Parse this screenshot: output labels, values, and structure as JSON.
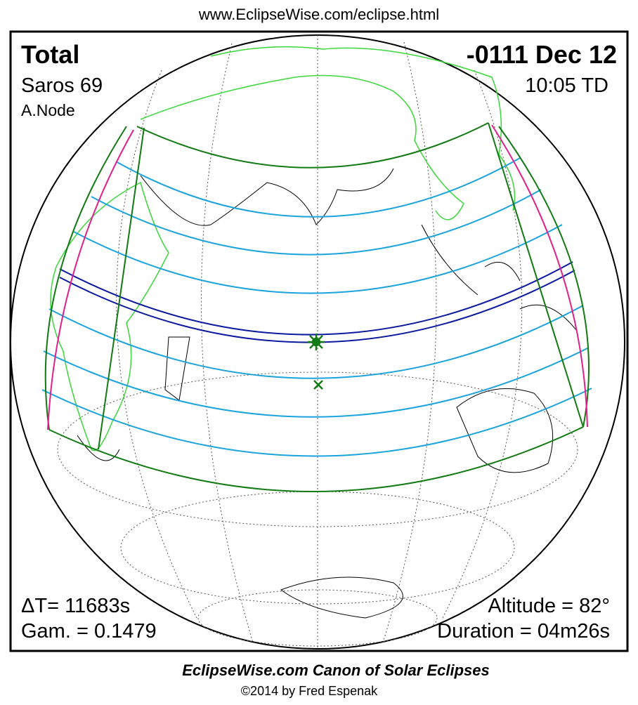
{
  "header": {
    "url": "www.EclipseWise.com/eclipse.html"
  },
  "eclipse": {
    "type": "Total",
    "date": "-0111 Dec 12",
    "saros": "Saros  69",
    "time": "10:05 TD",
    "node": "A.Node",
    "delta_t": "ΔT=  11683s",
    "altitude": "Altitude = 82°",
    "gamma": "Gam. = 0.1479",
    "duration": "Duration = 04m26s"
  },
  "footer": {
    "title": "EclipseWise.com Canon of Solar Eclipses",
    "credit": "©2014 by Fred Espenak"
  }
}
